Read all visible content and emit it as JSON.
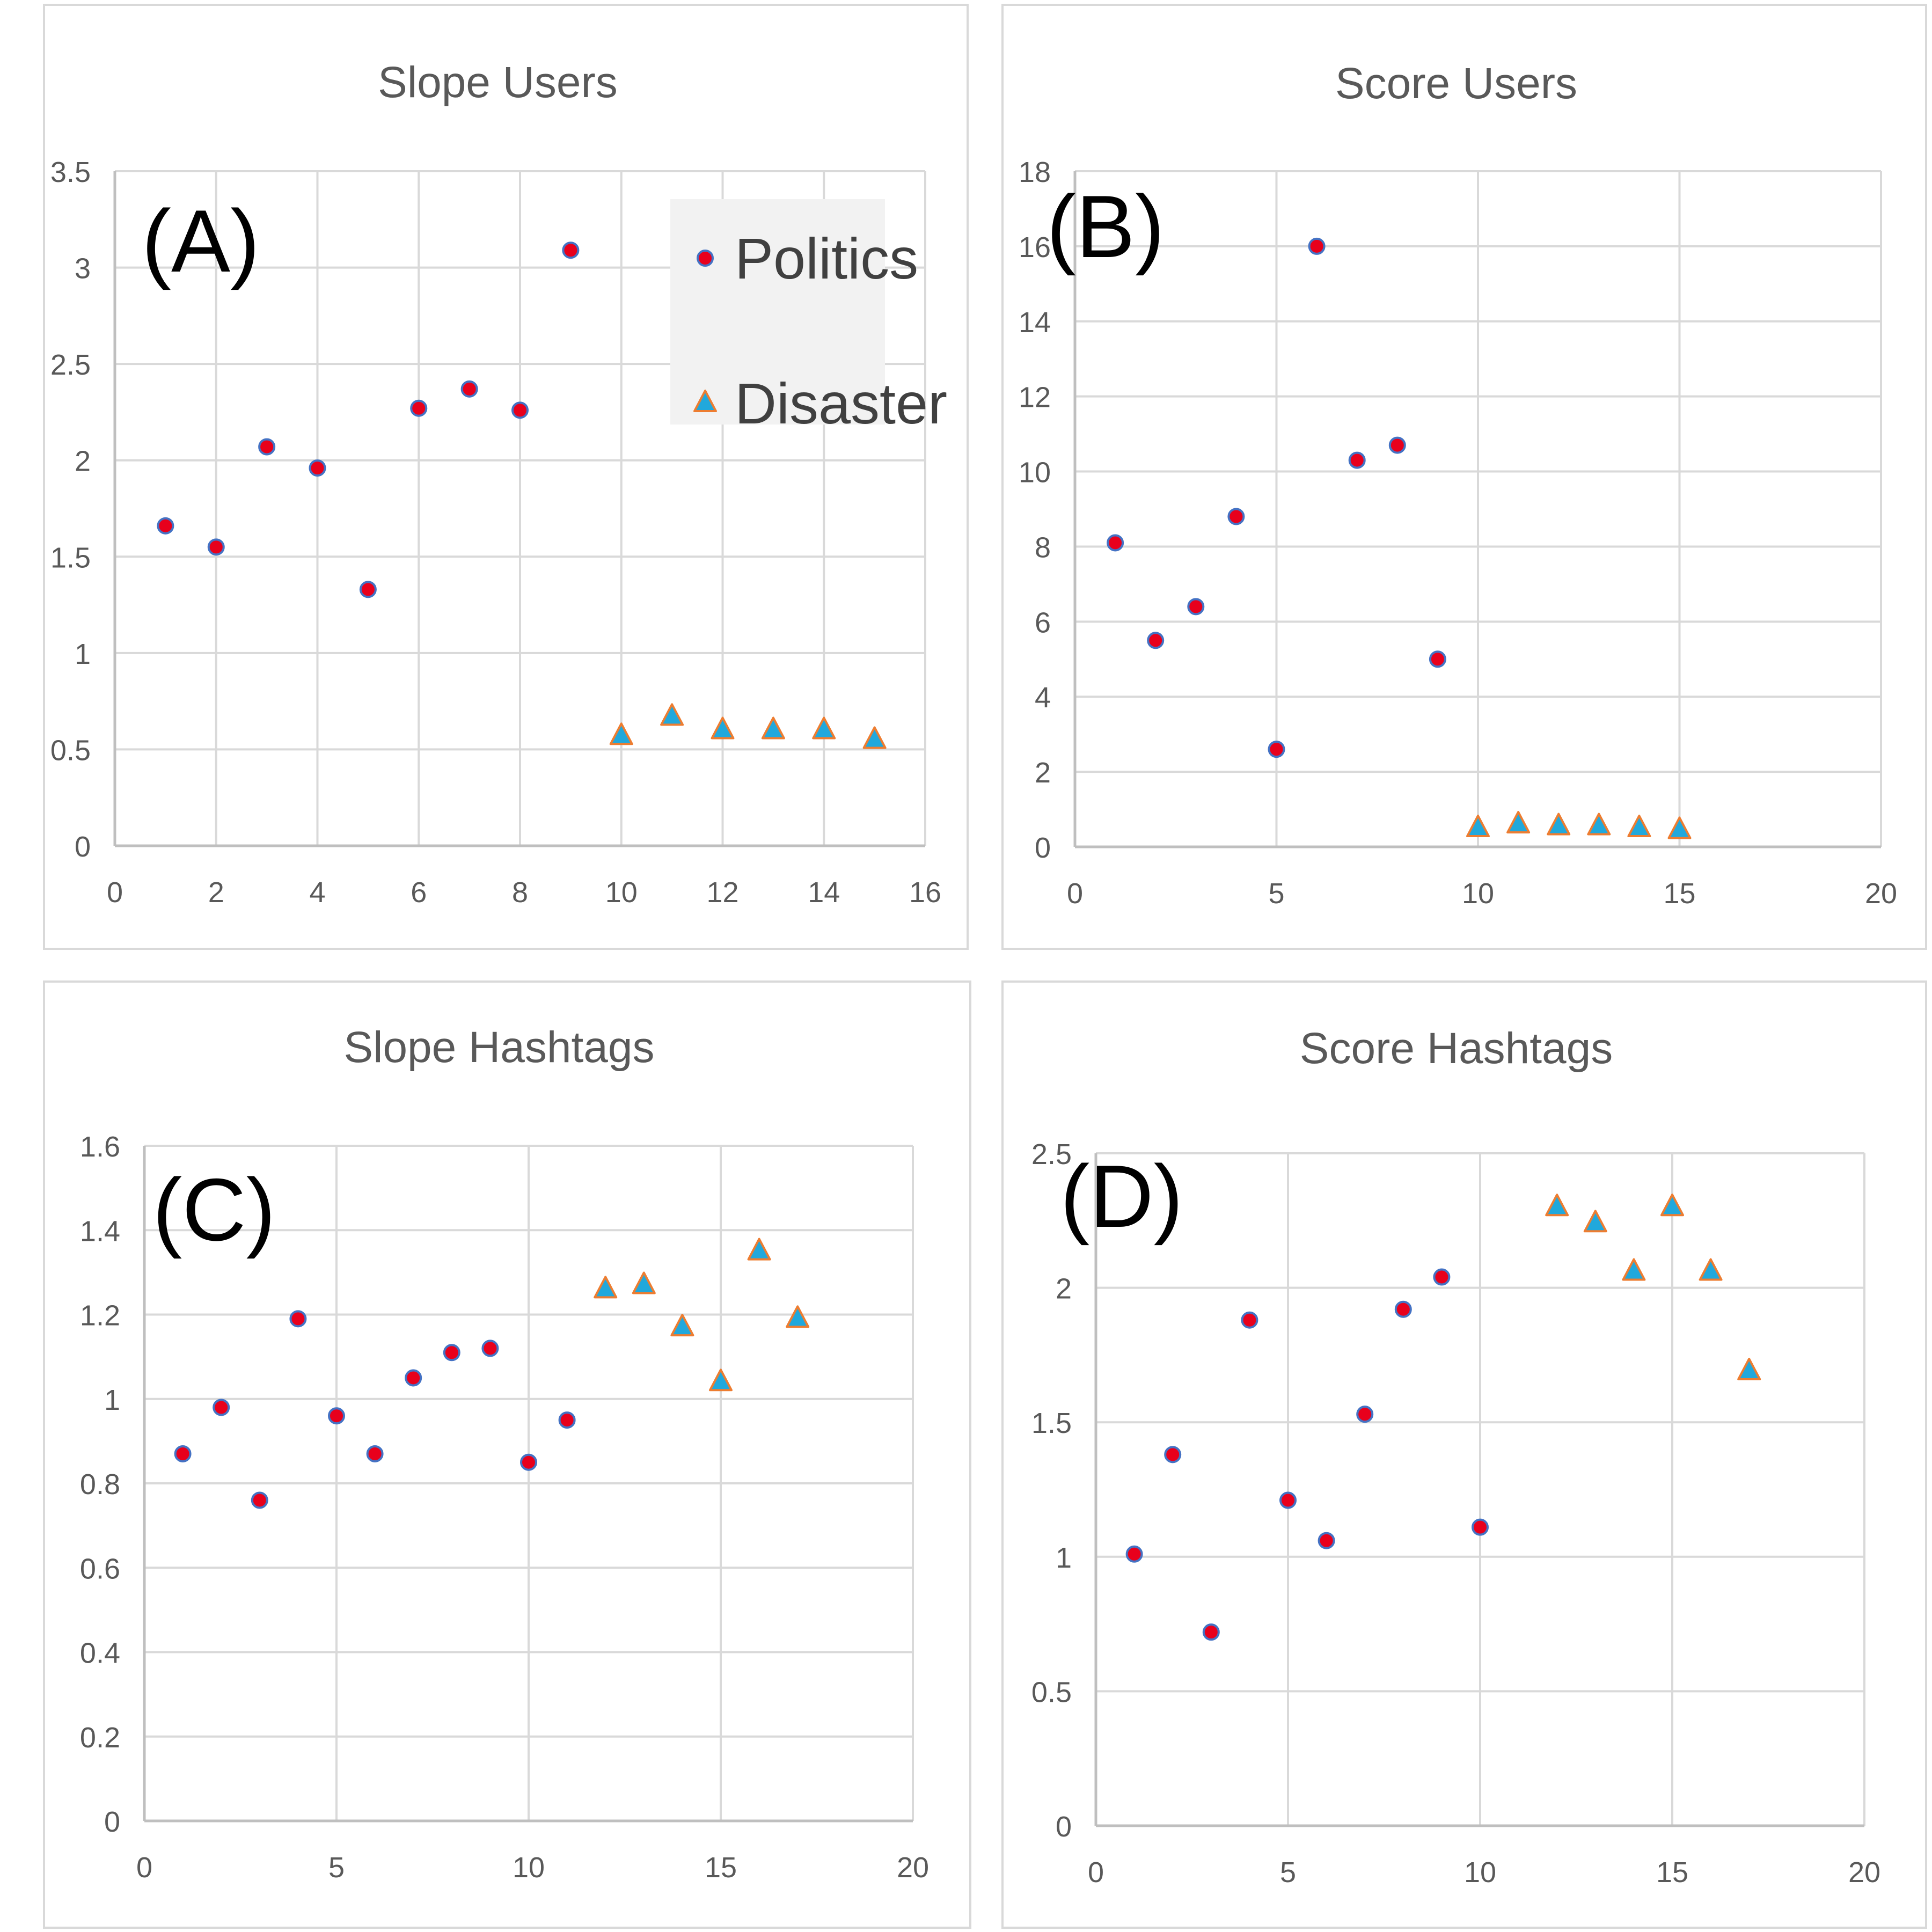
{
  "colors": {
    "politics_fill": "#e8001c",
    "politics_stroke": "#4472c4",
    "disaster_fill": "#21a8dc",
    "disaster_stroke": "#ed7d31",
    "grid": "#d9d9d9",
    "axis": "#bfbfbf",
    "text": "#595959",
    "legend_bg": "#f2f2f2"
  },
  "legend": {
    "items": [
      {
        "label": "Politics",
        "marker": "circle"
      },
      {
        "label": "Disaster",
        "marker": "triangle"
      }
    ],
    "placement": "top-right of panel A"
  },
  "chart_data": [
    {
      "type": "scatter",
      "panel_letter": "(A)",
      "title": "Slope Users",
      "xlim": [
        0,
        16
      ],
      "ylim": [
        0,
        3.5
      ],
      "x_ticks": [
        0,
        2,
        4,
        6,
        8,
        10,
        12,
        14,
        16
      ],
      "y_ticks": [
        0,
        0.5,
        1,
        1.5,
        2,
        2.5,
        3,
        3.5
      ],
      "y_tick_labels": [
        "0",
        "0.5",
        "1",
        "1.5",
        "2",
        "2.5",
        "3",
        "3.5"
      ],
      "grid": true,
      "show_legend": true,
      "series": [
        {
          "name": "Politics",
          "marker": "circle",
          "x": [
            1,
            2,
            3,
            4,
            5,
            6,
            7,
            8,
            9
          ],
          "y": [
            1.66,
            1.55,
            2.07,
            1.96,
            1.33,
            2.27,
            2.37,
            2.26,
            3.09
          ]
        },
        {
          "name": "Disaster",
          "marker": "triangle",
          "x": [
            10,
            11,
            12,
            13,
            14,
            15
          ],
          "y": [
            0.57,
            0.67,
            0.6,
            0.6,
            0.6,
            0.55
          ]
        }
      ]
    },
    {
      "type": "scatter",
      "panel_letter": "(B)",
      "title": "Score Users",
      "xlim": [
        0,
        20
      ],
      "ylim": [
        0,
        18
      ],
      "x_ticks": [
        0,
        5,
        10,
        15,
        20
      ],
      "y_ticks": [
        0,
        2,
        4,
        6,
        8,
        10,
        12,
        14,
        16,
        18
      ],
      "y_tick_labels": [
        "0",
        "2",
        "4",
        "6",
        "8",
        "10",
        "12",
        "14",
        "16",
        "18"
      ],
      "grid": true,
      "show_legend": false,
      "series": [
        {
          "name": "Politics",
          "marker": "circle",
          "x": [
            1,
            2,
            3,
            4,
            5,
            6,
            7,
            8,
            9
          ],
          "y": [
            8.1,
            5.5,
            6.4,
            8.8,
            2.6,
            16.0,
            10.3,
            10.7,
            5.0
          ]
        },
        {
          "name": "Disaster",
          "marker": "triangle",
          "x": [
            10,
            11,
            12,
            13,
            14,
            15
          ],
          "y": [
            0.5,
            0.6,
            0.55,
            0.55,
            0.5,
            0.45
          ]
        }
      ]
    },
    {
      "type": "scatter",
      "panel_letter": "(C)",
      "title": "Slope Hashtags",
      "xlim": [
        0,
        20
      ],
      "ylim": [
        0,
        1.6
      ],
      "x_ticks": [
        0,
        5,
        10,
        15,
        20
      ],
      "y_ticks": [
        0,
        0.2,
        0.4,
        0.6,
        0.8,
        1,
        1.2,
        1.4,
        1.6
      ],
      "y_tick_labels": [
        "0",
        "0.2",
        "0.4",
        "0.6",
        "0.8",
        "1",
        "1.2",
        "1.4",
        "1.6"
      ],
      "grid": true,
      "show_legend": false,
      "series": [
        {
          "name": "Politics",
          "marker": "circle",
          "x": [
            1,
            2,
            3,
            4,
            5,
            6,
            7,
            8,
            9,
            10,
            11
          ],
          "y": [
            0.87,
            0.98,
            0.76,
            1.19,
            0.96,
            0.87,
            1.05,
            1.11,
            1.12,
            0.85,
            0.95
          ]
        },
        {
          "name": "Disaster",
          "marker": "triangle",
          "x": [
            12,
            13,
            14,
            15,
            16,
            17
          ],
          "y": [
            1.26,
            1.27,
            1.17,
            1.04,
            1.35,
            1.19
          ]
        }
      ]
    },
    {
      "type": "scatter",
      "panel_letter": "(D)",
      "title": "Score Hashtags",
      "xlim": [
        0,
        20
      ],
      "ylim": [
        0,
        2.5
      ],
      "x_ticks": [
        0,
        5,
        10,
        15,
        20
      ],
      "y_ticks": [
        0,
        0.5,
        1,
        1.5,
        2,
        2.5
      ],
      "y_tick_labels": [
        "0",
        "0.5",
        "1",
        "1.5",
        "2",
        "2.5"
      ],
      "grid": true,
      "show_legend": false,
      "series": [
        {
          "name": "Politics",
          "marker": "circle",
          "x": [
            1,
            2,
            3,
            4,
            5,
            6,
            7,
            8,
            9,
            10
          ],
          "y": [
            1.01,
            1.38,
            0.72,
            1.88,
            1.21,
            1.06,
            1.53,
            1.92,
            2.04,
            1.11
          ]
        },
        {
          "name": "Disaster",
          "marker": "triangle",
          "x": [
            12,
            13,
            14,
            15,
            16,
            17
          ],
          "y": [
            2.3,
            2.24,
            2.06,
            2.3,
            2.06,
            1.69
          ]
        }
      ]
    }
  ]
}
